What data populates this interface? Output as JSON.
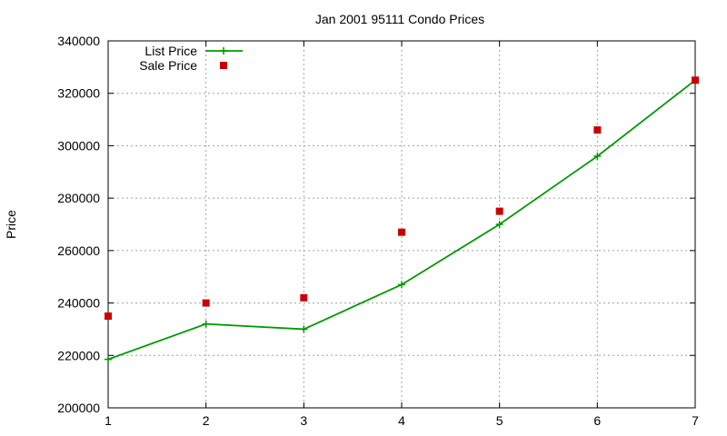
{
  "chart_data": {
    "type": "line",
    "title": "Jan 2001 95111 Condo Prices",
    "xlabel": "",
    "ylabel": "Price",
    "x": [
      1,
      2,
      3,
      4,
      5,
      6,
      7
    ],
    "xlim": [
      1,
      7
    ],
    "ylim": [
      200000,
      340000
    ],
    "x_ticks": [
      "1",
      "2",
      "3",
      "4",
      "5",
      "6",
      "7"
    ],
    "y_ticks": [
      "200000",
      "220000",
      "240000",
      "260000",
      "280000",
      "300000",
      "320000",
      "340000"
    ],
    "grid": true,
    "legend_position": "top-left",
    "series": [
      {
        "name": "List Price",
        "style": "line-with-plus-markers",
        "color": "#009900",
        "values": [
          218500,
          232000,
          230000,
          247000,
          270000,
          296000,
          325000
        ]
      },
      {
        "name": "Sale Price",
        "style": "square-points",
        "color": "#cc0000",
        "values": [
          235000,
          240000,
          242000,
          267000,
          275000,
          306000,
          325000
        ]
      }
    ]
  }
}
